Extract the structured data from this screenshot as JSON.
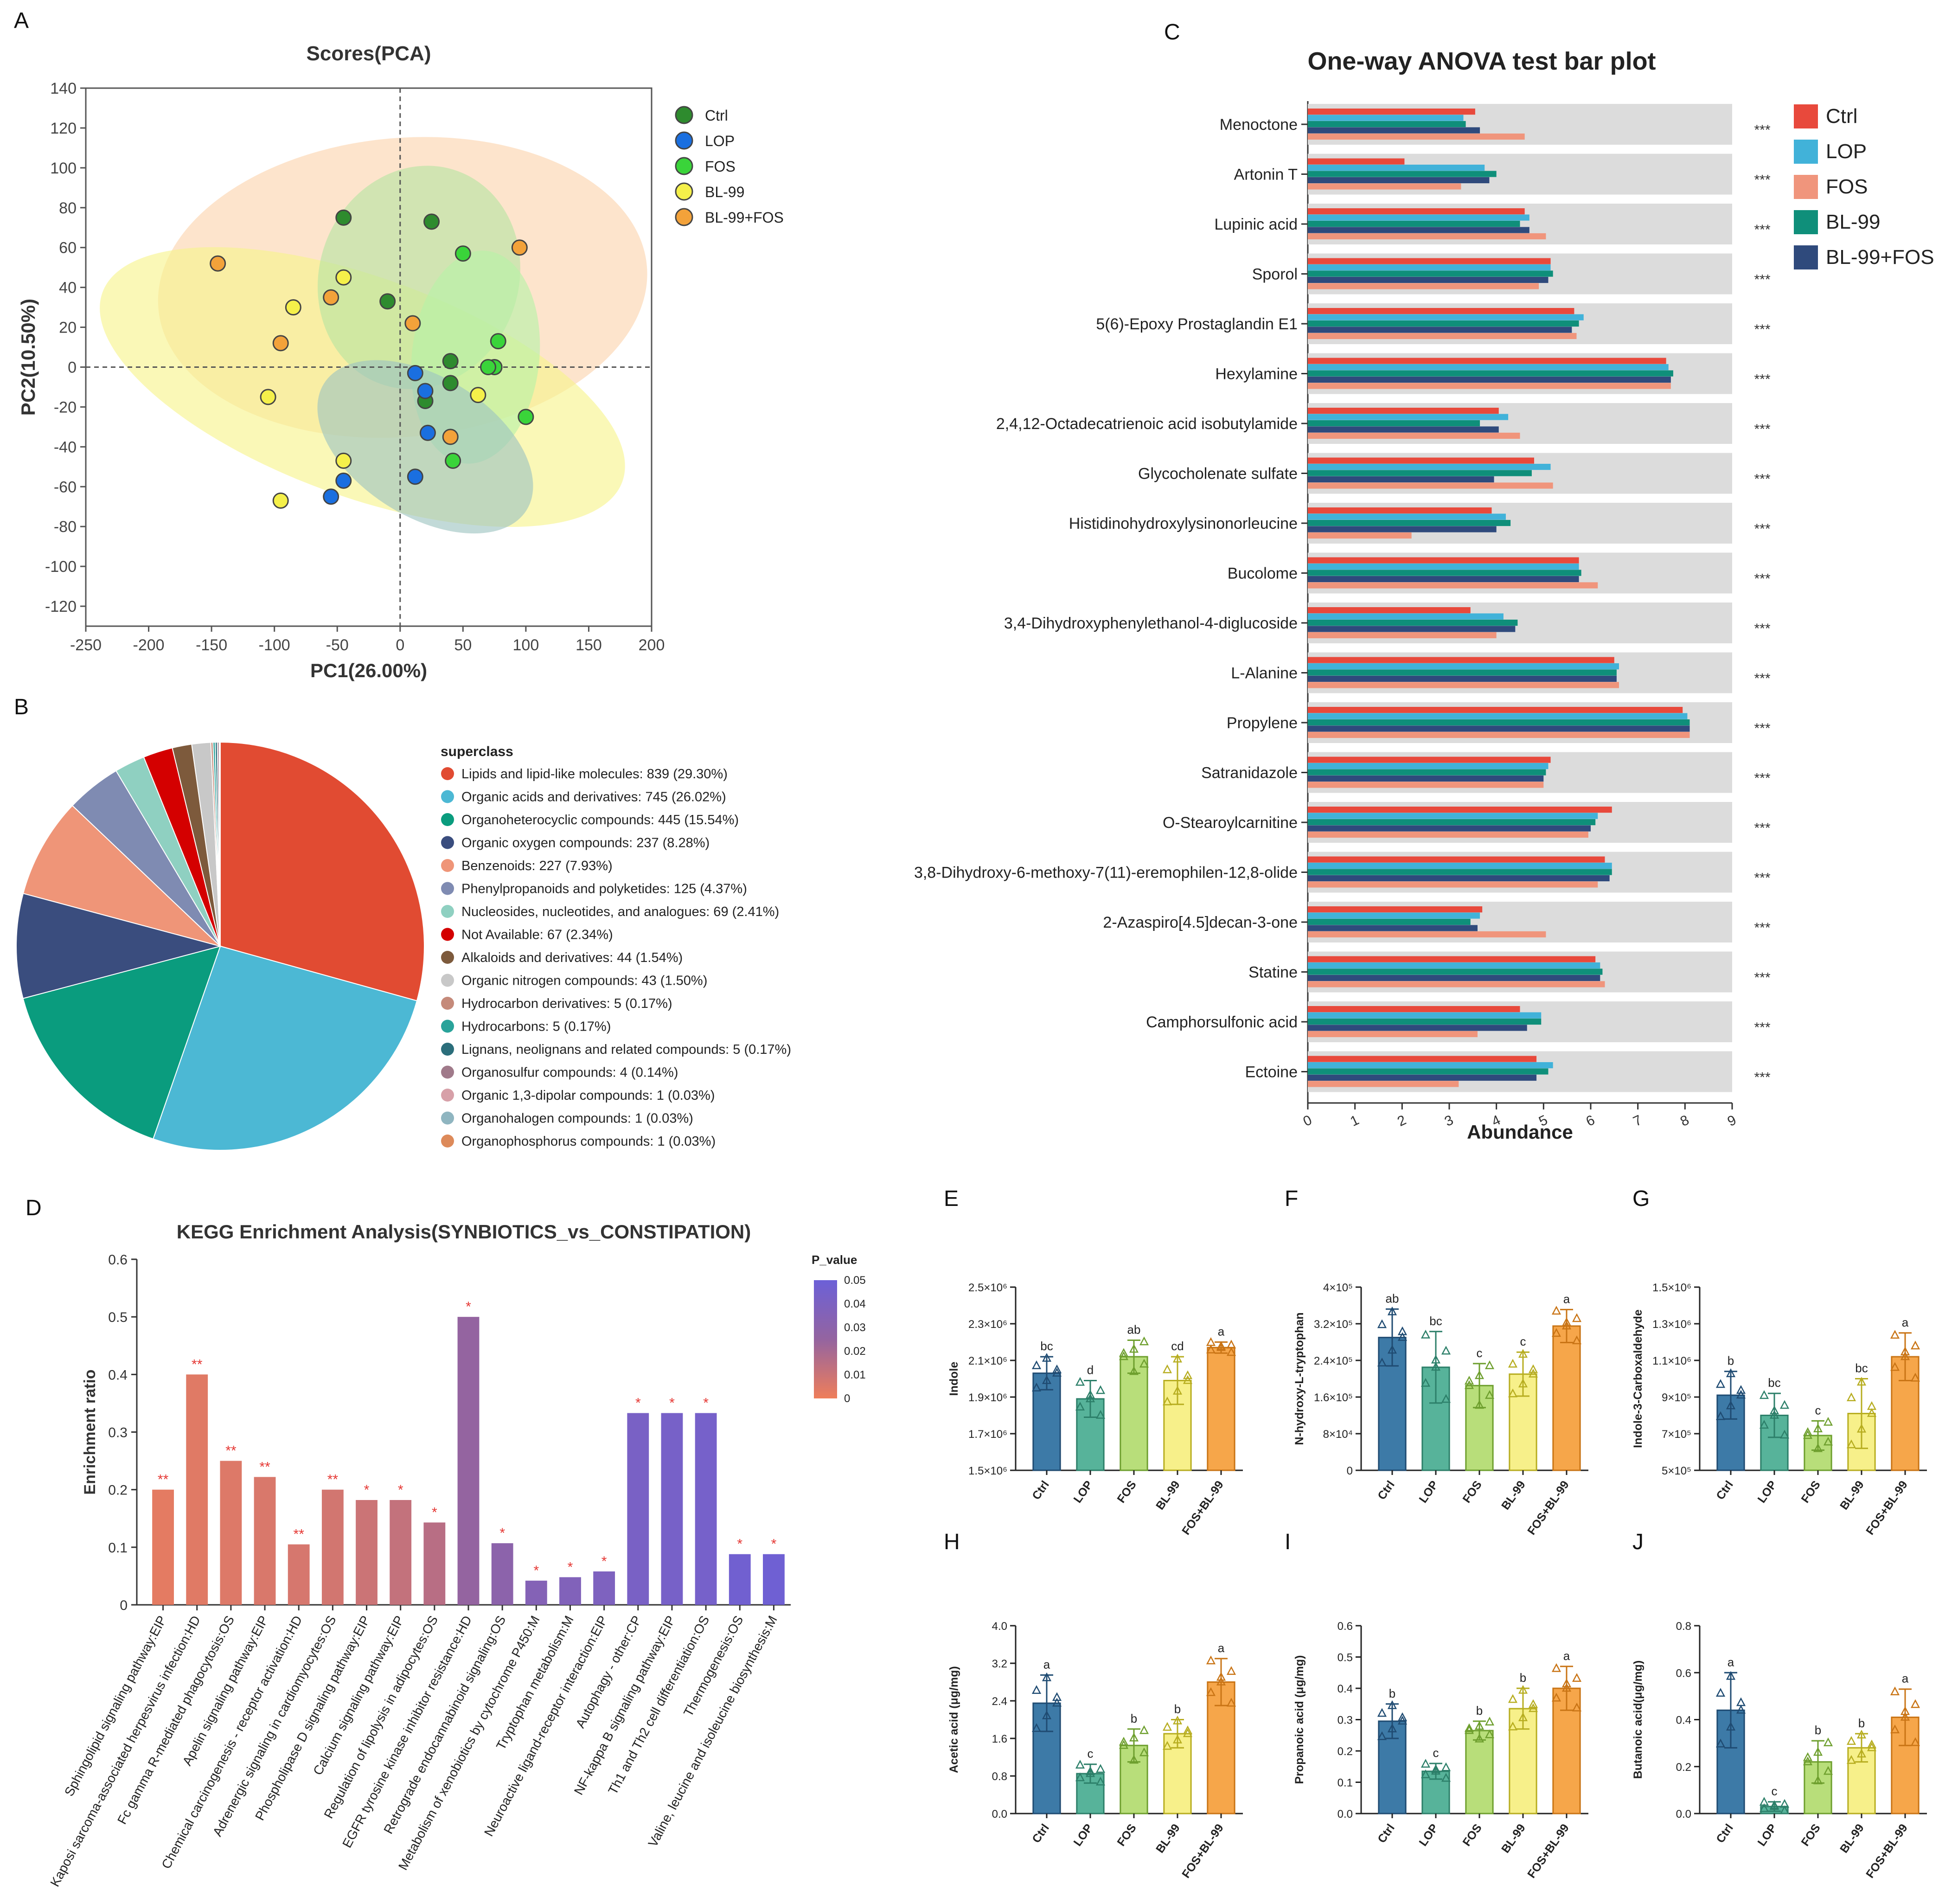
{
  "chart_data": [
    {
      "panel": "A",
      "type": "scatter",
      "title": "Scores(PCA)",
      "xlabel": "PC1(26.00%)",
      "ylabel": "PC2(10.50%)",
      "xlim": [
        -250,
        200
      ],
      "ylim": [
        -130,
        140
      ],
      "xticks": [
        "-250",
        "-200",
        "-150",
        "-100",
        "-50",
        "0",
        "50",
        "100",
        "150",
        "200"
      ],
      "yticks": [
        "-120",
        "-100",
        "-80",
        "-60",
        "-40",
        "-20",
        "0",
        "20",
        "40",
        "60",
        "80",
        "100",
        "120",
        "140"
      ],
      "ellipses": [
        {
          "group": "BL-99+FOS",
          "cx": 2,
          "cy": 40,
          "rx": 195,
          "ry": 75,
          "angle": -5,
          "color": "#fbd3ad"
        },
        {
          "group": "BL-99",
          "cx": -30,
          "cy": -10,
          "rx": 220,
          "ry": 55,
          "angle": 20,
          "color": "#f7f38a"
        },
        {
          "group": "Ctrl",
          "cx": 15,
          "cy": 45,
          "rx": 90,
          "ry": 50,
          "angle": -70,
          "color": "#b7e3a2"
        },
        {
          "group": "FOS",
          "cx": 60,
          "cy": 5,
          "rx": 85,
          "ry": 32,
          "angle": -84,
          "color": "#b7f2a6"
        },
        {
          "group": "LOP",
          "cx": 20,
          "cy": -40,
          "rx": 95,
          "ry": 35,
          "angle": 32,
          "color": "#9cc4c0"
        }
      ],
      "series": [
        {
          "name": "Ctrl",
          "color": "#2e8b2e",
          "points": [
            [
              -45,
              75
            ],
            [
              25,
              73
            ],
            [
              -10,
              33
            ],
            [
              40,
              3
            ],
            [
              20,
              -17
            ],
            [
              40,
              -8
            ]
          ]
        },
        {
          "name": "LOP",
          "color": "#1a6fe0",
          "points": [
            [
              12,
              -3
            ],
            [
              20,
              -12
            ],
            [
              22,
              -33
            ],
            [
              12,
              -55
            ],
            [
              -55,
              -65
            ],
            [
              -45,
              -57
            ]
          ]
        },
        {
          "name": "FOS",
          "color": "#3ad43a",
          "points": [
            [
              50,
              57
            ],
            [
              78,
              13
            ],
            [
              75,
              0
            ],
            [
              70,
              0
            ],
            [
              100,
              -25
            ],
            [
              42,
              -47
            ]
          ]
        },
        {
          "name": "BL-99",
          "color": "#f5f04a",
          "points": [
            [
              -45,
              45
            ],
            [
              -85,
              30
            ],
            [
              -105,
              -15
            ],
            [
              62,
              -14
            ],
            [
              -45,
              -47
            ],
            [
              -95,
              -67
            ]
          ]
        },
        {
          "name": "BL-99+FOS",
          "color": "#f3a23a",
          "points": [
            [
              -145,
              52
            ],
            [
              -55,
              35
            ],
            [
              -95,
              12
            ],
            [
              95,
              60
            ],
            [
              10,
              22
            ],
            [
              40,
              -35
            ]
          ]
        }
      ]
    },
    {
      "panel": "B",
      "type": "pie",
      "legend_title": "superclass",
      "slices": [
        {
          "label": "Lipids and lipid-like molecules: 839 (29.30%)",
          "value": 29.3,
          "color": "#e14b32"
        },
        {
          "label": "Organic acids and derivatives: 745 (26.02%)",
          "value": 26.02,
          "color": "#4cb8d4"
        },
        {
          "label": "Organoheterocyclic compounds: 445 (15.54%)",
          "value": 15.54,
          "color": "#0a9c7e"
        },
        {
          "label": "Organic oxygen compounds: 237 (8.28%)",
          "value": 8.28,
          "color": "#3a4d7e"
        },
        {
          "label": "Benzenoids: 227 (7.93%)",
          "value": 7.93,
          "color": "#ef9578"
        },
        {
          "label": "Phenylpropanoids and polyketides: 125 (4.37%)",
          "value": 4.37,
          "color": "#7f8bb2"
        },
        {
          "label": "Nucleosides, nucleotides, and analogues: 69 (2.41%)",
          "value": 2.41,
          "color": "#8fd0c1"
        },
        {
          "label": "Not Available: 67 (2.34%)",
          "value": 2.34,
          "color": "#d40000"
        },
        {
          "label": "Alkaloids and derivatives: 44 (1.54%)",
          "value": 1.54,
          "color": "#7d5a3c"
        },
        {
          "label": "Organic nitrogen compounds: 43 (1.50%)",
          "value": 1.5,
          "color": "#c8c8c8"
        },
        {
          "label": "Hydrocarbon derivatives: 5 (0.17%)",
          "value": 0.17,
          "color": "#c58a7a"
        },
        {
          "label": "Hydrocarbons: 5 (0.17%)",
          "value": 0.17,
          "color": "#29a39a"
        },
        {
          "label": "Lignans, neolignans and related compounds: 5 (0.17%)",
          "value": 0.17,
          "color": "#2b6e7b"
        },
        {
          "label": "Organosulfur compounds: 4 (0.14%)",
          "value": 0.14,
          "color": "#a07a8a"
        },
        {
          "label": "Organic 1,3-dipolar compounds: 1 (0.03%)",
          "value": 0.03,
          "color": "#d7a0a8"
        },
        {
          "label": "Organohalogen compounds: 1 (0.03%)",
          "value": 0.03,
          "color": "#8fb5c0"
        },
        {
          "label": "Organophosphorus compounds: 1 (0.03%)",
          "value": 0.03,
          "color": "#dd8a5a"
        }
      ]
    },
    {
      "panel": "C",
      "type": "bar",
      "orientation": "horizontal",
      "title": "One-way ANOVA    test bar plot",
      "xlabel": "Abundance",
      "xlim": [
        0,
        9
      ],
      "xticks": [
        "0",
        "1",
        "2",
        "3",
        "4",
        "5",
        "6",
        "7",
        "8",
        "9"
      ],
      "series_names": [
        "Ctrl",
        "LOP",
        "FOS",
        "BL-99",
        "BL-99+FOS"
      ],
      "series_colors": [
        "#e8493c",
        "#41b2d9",
        "#f0957c",
        "#0f8f7a",
        "#2f4a7c"
      ],
      "series_order_in_bars": [
        "Ctrl",
        "LOP",
        "BL-99",
        "BL-99+FOS",
        "FOS"
      ],
      "significance": "***",
      "categories": [
        "Menoctone",
        "Artonin T",
        "Lupinic acid",
        "Sporol",
        "5(6)-Epoxy Prostaglandin E1",
        "Hexylamine",
        "2,4,12-Octadecatrienoic acid isobutylamide",
        "Glycocholenate sulfate",
        "Histidinohydroxylysinonorleucine",
        "Bucolome",
        "3,4-Dihydroxyphenylethanol-4-diglucoside",
        "L-Alanine",
        "Propylene",
        "Satranidazole",
        "O-Stearoylcarnitine",
        "3,8-Dihydroxy-6-methoxy-7(11)-eremophilen-12,8-olide",
        "2-Azaspiro[4.5]decan-3-one",
        "Statine",
        "Camphorsulfonic acid",
        "Ectoine"
      ],
      "values": {
        "Ctrl": [
          3.55,
          2.05,
          4.6,
          5.15,
          5.65,
          7.6,
          4.05,
          4.8,
          3.9,
          5.75,
          3.45,
          6.5,
          7.95,
          5.15,
          6.45,
          6.3,
          3.7,
          6.1,
          4.5,
          4.85
        ],
        "LOP": [
          3.3,
          3.75,
          4.7,
          5.15,
          5.85,
          7.65,
          4.25,
          5.15,
          4.2,
          5.75,
          4.15,
          6.6,
          8.05,
          5.1,
          6.15,
          6.45,
          3.65,
          6.2,
          4.95,
          5.2
        ],
        "BL-99": [
          3.35,
          4.0,
          4.5,
          5.2,
          5.75,
          7.75,
          3.65,
          4.75,
          4.3,
          5.8,
          4.45,
          6.55,
          8.1,
          5.05,
          6.1,
          6.45,
          3.45,
          6.25,
          4.95,
          5.1
        ],
        "BL-99+FOS": [
          3.65,
          3.85,
          4.7,
          5.1,
          5.6,
          7.7,
          4.05,
          3.95,
          4.0,
          5.75,
          4.4,
          6.55,
          8.1,
          5.0,
          6.0,
          6.4,
          3.6,
          6.2,
          4.65,
          4.85
        ],
        "FOS": [
          4.6,
          3.25,
          5.05,
          4.9,
          5.7,
          7.7,
          4.5,
          5.2,
          2.2,
          6.15,
          4.0,
          6.6,
          8.1,
          5.0,
          5.95,
          6.15,
          5.05,
          6.3,
          3.6,
          3.2
        ]
      }
    },
    {
      "panel": "D",
      "type": "bar",
      "title": "KEGG Enrichment Analysis(SYNBIOTICS_vs_CONSTIPATION)",
      "ylabel": "Enrichment ratio",
      "ylim": [
        0,
        0.6
      ],
      "yticks": [
        "0",
        "0.1",
        "0.2",
        "0.3",
        "0.4",
        "0.5",
        "0.6"
      ],
      "colorbar_title": "P_value",
      "colorbar_ticks": [
        "0.05",
        "0.04",
        "0.03",
        "0.02",
        "0.01",
        "0"
      ],
      "categories": [
        "Sphingolipid signaling pathway:EIP",
        "Kaposi sarcoma-associated herpesvirus infection:HD",
        "Fc gamma R-mediated phagocytosis:OS",
        "Apelin signaling pathway:EIP",
        "Chemical carcinogenesis - receptor activation:HD",
        "Adrenergic signaling in cardiomyocytes:OS",
        "Phospholipase D signaling pathway:EIP",
        "Calcium signaling pathway:EIP",
        "Regulation of lipolysis in adipocytes:OS",
        "EGFR tyrosine kinase inhibitor resistance:HD",
        "Retrograde endocannabinoid signaling:OS",
        "Metabolism of xenobiotics by cytochrome P450:M",
        "Tryptophan metabolism:M",
        "Neuroactive ligand-receptor interaction:EIP",
        "Autophagy - other:CP",
        "NF-kappa B signaling pathway:EIP",
        "Th1 and Th2 cell differentiation:OS",
        "Thermogenesis:OS",
        "Valine, leucine and isoleucine biosynthesis:M"
      ],
      "values": [
        0.2,
        0.4,
        0.25,
        0.222,
        0.105,
        0.2,
        0.182,
        0.182,
        0.143,
        0.5,
        0.107,
        0.042,
        0.048,
        0.058,
        0.333,
        0.333,
        0.333,
        0.088,
        0.088
      ],
      "p_values": [
        0.003,
        0.004,
        0.005,
        0.006,
        0.007,
        0.008,
        0.01,
        0.012,
        0.015,
        0.025,
        0.03,
        0.035,
        0.037,
        0.039,
        0.042,
        0.043,
        0.044,
        0.047,
        0.048
      ],
      "stars": [
        "**",
        "**",
        "**",
        "**",
        "**",
        "**",
        "*",
        "*",
        "*",
        "*",
        "*",
        "*",
        "*",
        "*",
        "*",
        "*",
        "*",
        "*",
        "*"
      ]
    },
    {
      "panel": "E",
      "type": "bar",
      "ylabel": "Indole",
      "categories": [
        "Ctrl",
        "LOP",
        "FOS",
        "BL-99",
        "FOS+BL-99"
      ],
      "ylim": [
        1500000,
        2500000
      ],
      "yticks": [
        "1.5×10⁶",
        "1.7×10⁶",
        "1.9×10⁶",
        "2.1×10⁶",
        "2.3×10⁶",
        "2.5×10⁶"
      ],
      "values": [
        2030000,
        1890000,
        2120000,
        1990000,
        2170000
      ],
      "errors": [
        90000,
        100000,
        90000,
        130000,
        30000
      ],
      "letters": [
        "bc",
        "d",
        "ab",
        "cd",
        "a"
      ]
    },
    {
      "panel": "F",
      "type": "bar",
      "ylabel": "N-hydroxy-L-tryptophan",
      "categories": [
        "Ctrl",
        "LOP",
        "FOS",
        "BL-99",
        "FOS+BL-99"
      ],
      "ylim": [
        0,
        400000
      ],
      "yticks": [
        "0",
        "8×10⁴",
        "1.6×10⁵",
        "2.4×10⁵",
        "3.2×10⁵",
        "4×10⁵"
      ],
      "values": [
        290000,
        225000,
        185000,
        210000,
        315000
      ],
      "errors": [
        62000,
        78000,
        48000,
        48000,
        36000
      ],
      "letters": [
        "ab",
        "bc",
        "c",
        "c",
        "a"
      ]
    },
    {
      "panel": "G",
      "type": "bar",
      "ylabel": "Indole-3-Carboxaldehyde",
      "categories": [
        "Ctrl",
        "LOP",
        "FOS",
        "BL-99",
        "FOS+BL-99"
      ],
      "ylim": [
        500000,
        1500000
      ],
      "yticks": [
        "5×10⁵",
        "7×10⁵",
        "9×10⁵",
        "1.1×10⁶",
        "1.3×10⁶",
        "1.5×10⁶"
      ],
      "values": [
        910000,
        800000,
        690000,
        810000,
        1120000
      ],
      "errors": [
        130000,
        120000,
        80000,
        190000,
        130000
      ],
      "letters": [
        "b",
        "bc",
        "c",
        "bc",
        "a"
      ]
    },
    {
      "panel": "H",
      "type": "bar",
      "ylabel": "Acetic acid (μg/mg)",
      "categories": [
        "Ctrl",
        "LOP",
        "FOS",
        "BL-99",
        "FOS+BL-99"
      ],
      "ylim": [
        0,
        4.0
      ],
      "yticks": [
        "0.0",
        "0.8",
        "1.6",
        "2.4",
        "3.2",
        "4.0"
      ],
      "values": [
        2.35,
        0.85,
        1.45,
        1.7,
        2.8
      ],
      "errors": [
        0.6,
        0.2,
        0.35,
        0.3,
        0.5
      ],
      "letters": [
        "a",
        "c",
        "b",
        "b",
        "a"
      ]
    },
    {
      "panel": "I",
      "type": "bar",
      "ylabel": "Propanoic acid (μg/mg)",
      "categories": [
        "Ctrl",
        "LOP",
        "FOS",
        "BL-99",
        "FOS+BL-99"
      ],
      "ylim": [
        0,
        0.6
      ],
      "yticks": [
        "0.0",
        "0.1",
        "0.2",
        "0.3",
        "0.4",
        "0.5",
        "0.6"
      ],
      "values": [
        0.295,
        0.135,
        0.265,
        0.335,
        0.4
      ],
      "errors": [
        0.055,
        0.025,
        0.03,
        0.065,
        0.07
      ],
      "letters": [
        "b",
        "c",
        "b",
        "b",
        "a"
      ]
    },
    {
      "panel": "J",
      "type": "bar",
      "ylabel": "Butanoic acid(μg/mg)",
      "categories": [
        "Ctrl",
        "LOP",
        "FOS",
        "BL-99",
        "FOS+BL-99"
      ],
      "ylim": [
        0,
        0.8
      ],
      "yticks": [
        "0.0",
        "0.2",
        "0.4",
        "0.6",
        "0.8"
      ],
      "values": [
        0.44,
        0.03,
        0.22,
        0.28,
        0.41
      ],
      "errors": [
        0.16,
        0.02,
        0.09,
        0.06,
        0.12
      ],
      "letters": [
        "a",
        "c",
        "b",
        "b",
        "a"
      ]
    }
  ],
  "panel_labels": [
    "A",
    "B",
    "C",
    "D",
    "E",
    "F",
    "G",
    "H",
    "I",
    "J"
  ],
  "bar_group_colors": {
    "fill": [
      "#3d7aa7",
      "#57b39a",
      "#b8de7a",
      "#f7f08a",
      "#f6a64a"
    ],
    "stroke": [
      "#1f4b72",
      "#2c7f69",
      "#6e9f2e",
      "#b7ad20",
      "#c97415"
    ]
  }
}
